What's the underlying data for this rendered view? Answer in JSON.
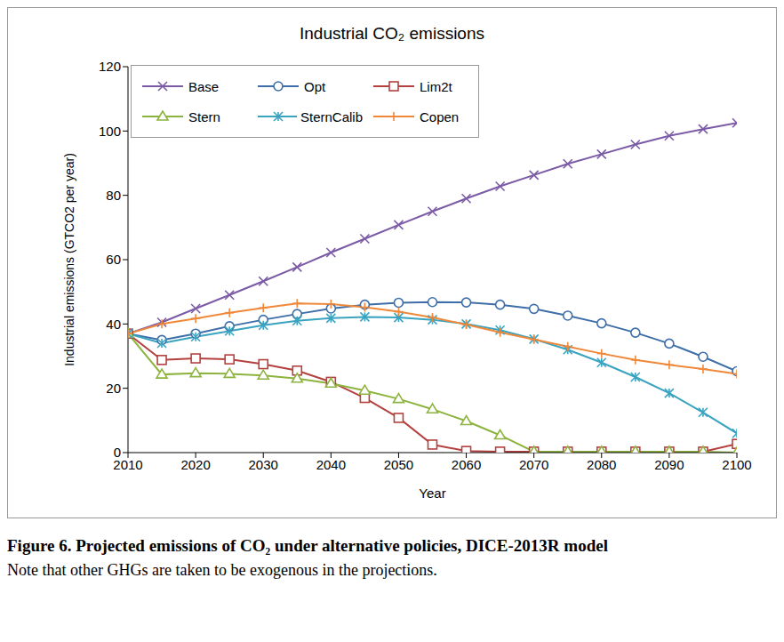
{
  "chart_data": {
    "type": "line",
    "title": "Industrial CO₂ emissions",
    "x_label": "Year",
    "y_label": "Industrial emissions (GTCO2 per year)",
    "caption": "Figure 6. Projected emissions of CO₂ under alternative policies, DICE-2013R model",
    "note": "Note that other GHGs are taken to be exogenous in the projections.",
    "x": [
      2010,
      2015,
      2020,
      2025,
      2030,
      2035,
      2040,
      2045,
      2050,
      2055,
      2060,
      2065,
      2070,
      2075,
      2080,
      2085,
      2090,
      2095,
      2100
    ],
    "xlim": [
      2010,
      2100
    ],
    "xticks": [
      2010,
      2020,
      2030,
      2040,
      2050,
      2060,
      2070,
      2080,
      2090,
      2100
    ],
    "ylim": [
      0,
      120
    ],
    "yticks": [
      0,
      20,
      40,
      60,
      80,
      100,
      120
    ],
    "grid": false,
    "legend": "upper left",
    "series": [
      {
        "name": "Base",
        "color": "#7b5ba6",
        "marker": "x",
        "values": [
          37,
          40.5,
          44.8,
          49,
          53.3,
          57.7,
          62.2,
          66.5,
          70.8,
          75,
          79,
          82.8,
          86.3,
          89.8,
          92.8,
          95.8,
          98.5,
          100.6,
          102.5
        ]
      },
      {
        "name": "Opt",
        "color": "#3e6ea8",
        "marker": "circle",
        "values": [
          37,
          35,
          37,
          39.3,
          41.3,
          43.1,
          44.8,
          46,
          46.6,
          46.8,
          46.7,
          46,
          44.7,
          42.6,
          40.2,
          37.3,
          33.9,
          29.8,
          25.3
        ]
      },
      {
        "name": "Lim2t",
        "color": "#b5413f",
        "marker": "square",
        "values": [
          37,
          28.8,
          29.3,
          29,
          27.5,
          25.5,
          22,
          17,
          10.8,
          2.5,
          0.5,
          0.3,
          0.3,
          0.3,
          0.3,
          0.3,
          0.3,
          0.3,
          2.7
        ]
      },
      {
        "name": "Stern",
        "color": "#8db33f",
        "marker": "triangle",
        "values": [
          37,
          24.3,
          24.7,
          24.5,
          24,
          23,
          21.5,
          19.3,
          16.7,
          13.5,
          9.8,
          5.4,
          0.3,
          0.3,
          0.3,
          0.3,
          0.3,
          0.3,
          0
        ]
      },
      {
        "name": "SternCalib",
        "color": "#3aa3bf",
        "marker": "asterisk",
        "values": [
          37,
          34,
          36,
          37.8,
          39.6,
          41,
          41.8,
          42.2,
          42,
          41.3,
          40,
          38.1,
          35.3,
          32,
          28,
          23.5,
          18.5,
          12.5,
          6
        ]
      },
      {
        "name": "Copen",
        "color": "#f0883a",
        "marker": "plus",
        "values": [
          37,
          40,
          41.7,
          43.5,
          45,
          46.4,
          46.2,
          45.2,
          43.8,
          42,
          39.8,
          37.4,
          35.2,
          33,
          30.8,
          28.8,
          27.3,
          26,
          24.5
        ]
      }
    ]
  }
}
